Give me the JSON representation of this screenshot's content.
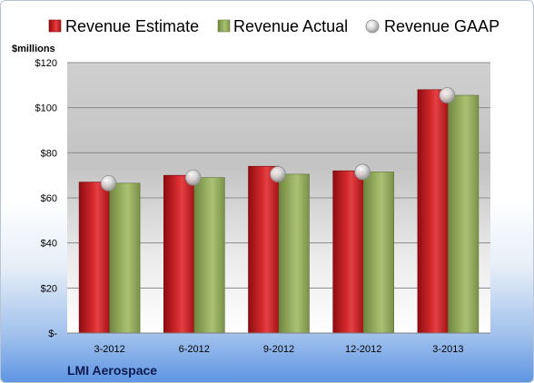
{
  "chart_data": {
    "type": "bar",
    "unit_label": "$millions",
    "company": "LMI Aerospace",
    "categories": [
      "3-2012",
      "6-2012",
      "9-2012",
      "12-2012",
      "3-2013"
    ],
    "series": [
      {
        "name": "Revenue Estimate",
        "type": "bar",
        "color": "#c0161b",
        "values": [
          67,
          70,
          74,
          72,
          108
        ]
      },
      {
        "name": "Revenue Actual",
        "type": "bar",
        "color": "#8ea558",
        "values": [
          66.5,
          69,
          70.5,
          71.5,
          105.5
        ]
      },
      {
        "name": "Revenue GAAP",
        "type": "marker",
        "color": "#d0d0d0",
        "values": [
          66.5,
          69,
          70.5,
          71.5,
          105.5
        ]
      }
    ],
    "y_ticks": [
      {
        "value": 0,
        "label": "$-"
      },
      {
        "value": 20,
        "label": "$20"
      },
      {
        "value": 40,
        "label": "$40"
      },
      {
        "value": 60,
        "label": "$60"
      },
      {
        "value": 80,
        "label": "$80"
      },
      {
        "value": 100,
        "label": "$100"
      },
      {
        "value": 120,
        "label": "$120"
      }
    ],
    "ylim": [
      0,
      120
    ],
    "grid": true,
    "legend_position": "top"
  }
}
